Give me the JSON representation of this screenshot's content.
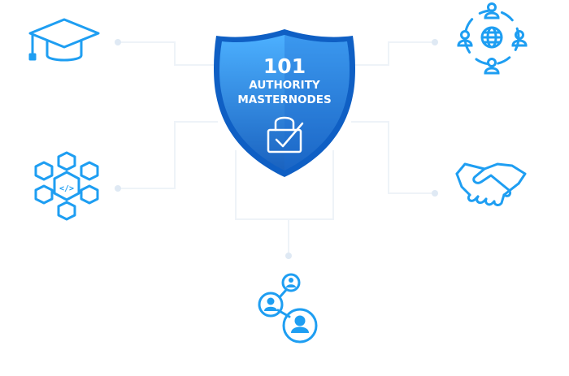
{
  "shield": {
    "number": "101",
    "line1": "AUTHORITY",
    "line2": "MASTERNODES"
  },
  "colors": {
    "accent": "#1e9ef2",
    "connector": "#eef3f8",
    "shield_light": "#4cb0ff",
    "shield_dark": "#1a62bf",
    "shield_border": "#0f5fc4"
  },
  "icons": [
    "graduation-cap-icon",
    "network-people-icon",
    "blockchain-code-icon",
    "handshake-icon",
    "user-network-icon",
    "shield-lock-check-icon"
  ]
}
